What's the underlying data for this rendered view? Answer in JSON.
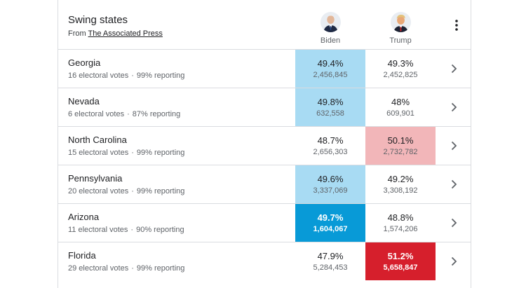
{
  "header": {
    "title": "Swing states",
    "source_prefix": "From",
    "source_link": "The Associated Press"
  },
  "candidates": {
    "biden": "Biden",
    "trump": "Trump"
  },
  "colors": {
    "biden_leading_light": "#a8dbf3",
    "biden_won": "#089ad7",
    "trump_leading_light": "#f2b6b9",
    "trump_won": "#d61f2c"
  },
  "separator": "·",
  "states": [
    {
      "name": "Georgia",
      "electoral": "16 electoral votes",
      "reporting": "99% reporting",
      "biden_pct": "49.4%",
      "biden_votes": "2,456,845",
      "trump_pct": "49.3%",
      "trump_votes": "2,452,825",
      "leader": "biden",
      "called": false
    },
    {
      "name": "Nevada",
      "electoral": "6 electoral votes",
      "reporting": "87% reporting",
      "biden_pct": "49.8%",
      "biden_votes": "632,558",
      "trump_pct": "48%",
      "trump_votes": "609,901",
      "leader": "biden",
      "called": false
    },
    {
      "name": "North Carolina",
      "electoral": "15 electoral votes",
      "reporting": "99% reporting",
      "biden_pct": "48.7%",
      "biden_votes": "2,656,303",
      "trump_pct": "50.1%",
      "trump_votes": "2,732,782",
      "leader": "trump",
      "called": false
    },
    {
      "name": "Pennsylvania",
      "electoral": "20 electoral votes",
      "reporting": "99% reporting",
      "biden_pct": "49.6%",
      "biden_votes": "3,337,069",
      "trump_pct": "49.2%",
      "trump_votes": "3,308,192",
      "leader": "biden",
      "called": false
    },
    {
      "name": "Arizona",
      "electoral": "11 electoral votes",
      "reporting": "90% reporting",
      "biden_pct": "49.7%",
      "biden_votes": "1,604,067",
      "trump_pct": "48.8%",
      "trump_votes": "1,574,206",
      "leader": "biden",
      "called": true
    },
    {
      "name": "Florida",
      "electoral": "29 electoral votes",
      "reporting": "99% reporting",
      "biden_pct": "47.9%",
      "biden_votes": "5,284,453",
      "trump_pct": "51.2%",
      "trump_votes": "5,658,847",
      "leader": "trump",
      "called": true
    }
  ]
}
